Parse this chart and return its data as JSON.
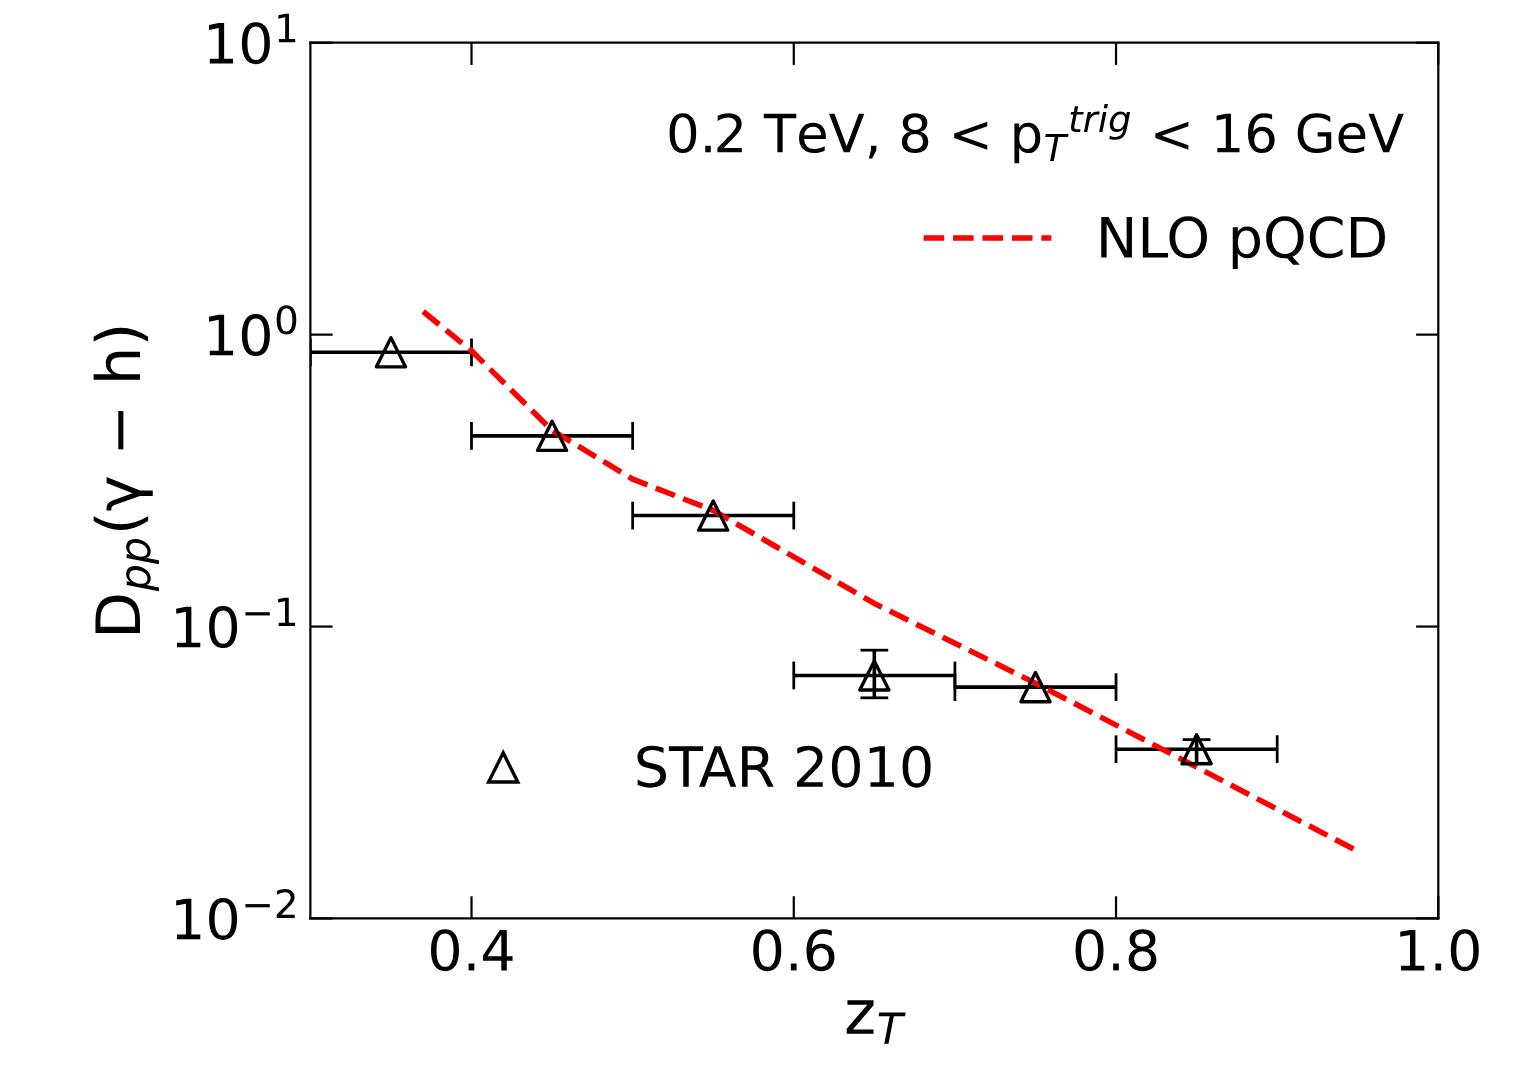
{
  "chart_data": {
    "type": "scatter",
    "xlabel": "z$_{T}$",
    "ylabel": "D$_{pp}$(γ − h)",
    "annotations": [
      "0.2 TeV, 8 < p$_{T}$$^{trig}$ < 16 GeV"
    ],
    "series": [
      {
        "name": "STAR 2010",
        "color": "#000000",
        "marker": "triangle",
        "x": [
          0.35,
          0.45,
          0.55,
          0.65,
          0.75,
          0.85
        ],
        "values": [
          0.87,
          0.45,
          0.24,
          0.068,
          0.062,
          0.038
        ],
        "xerrors": [
          0.05,
          0.05,
          0.05,
          0.05,
          0.05,
          0.05
        ],
        "errors": [
          null,
          null,
          null,
          [
            0.057,
            0.083
          ],
          null,
          [
            0.034,
            0.041
          ]
        ]
      },
      {
        "name": "NLO pQCD",
        "type": "line",
        "color": "#ff0000",
        "line_style": "dashed",
        "x": [
          0.37,
          0.4,
          0.45,
          0.5,
          0.55,
          0.65,
          0.75,
          0.85,
          0.95
        ],
        "values": [
          1.2,
          0.88,
          0.47,
          0.32,
          0.25,
          0.12,
          0.064,
          0.033,
          0.017
        ]
      }
    ],
    "log": "y",
    "xlim": [
      0.3,
      1.0
    ],
    "xticks": [
      0.4,
      0.6,
      0.8,
      {
        "value": 1.0,
        "label": "1.0"
      }
    ],
    "ylim": [
      0.01,
      10
    ],
    "yticks": [
      {
        "value": 0.01,
        "label": "10$^{−2}$"
      },
      {
        "value": 0.1,
        "label": "10$^{−1}$"
      },
      {
        "value": 1,
        "label": "10$^{0}$"
      },
      {
        "value": 10,
        "label": "10$^{1}$"
      }
    ],
    "legend": "right",
    "grid": false
  }
}
